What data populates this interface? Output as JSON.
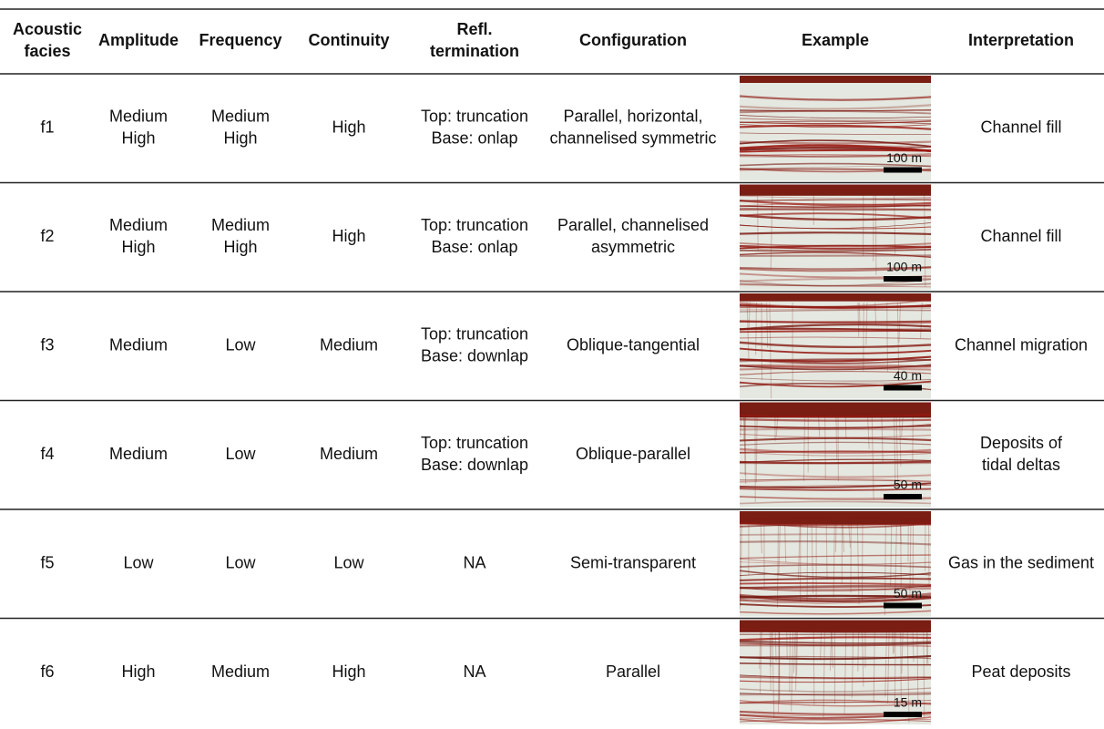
{
  "table": {
    "header": [
      [
        "Acoustic",
        "facies"
      ],
      [
        "Amplitude"
      ],
      [
        "Frequency"
      ],
      [
        "Continuity"
      ],
      [
        "Refl.",
        "termination"
      ],
      [
        "Configuration"
      ],
      [
        "Example"
      ],
      [
        "Interpretation"
      ]
    ],
    "rows": [
      {
        "cells": [
          [
            "f1"
          ],
          [
            "Medium",
            "High"
          ],
          [
            "Medium",
            "High"
          ],
          [
            "High"
          ],
          [
            "Top: truncation",
            "Base: onlap"
          ],
          [
            "Parallel, horizontal,",
            "channelised symmetric"
          ]
        ],
        "scale": "100 m",
        "interpretation": [
          "Channel fill"
        ]
      },
      {
        "cells": [
          [
            "f2"
          ],
          [
            "Medium",
            "High"
          ],
          [
            "Medium",
            "High"
          ],
          [
            "High"
          ],
          [
            "Top: truncation",
            "Base: onlap"
          ],
          [
            "Parallel, channelised",
            "asymmetric"
          ]
        ],
        "scale": "100 m",
        "interpretation": [
          "Channel fill"
        ]
      },
      {
        "cells": [
          [
            "f3"
          ],
          [
            "Medium"
          ],
          [
            "Low"
          ],
          [
            "Medium"
          ],
          [
            "Top: truncation",
            "Base: downlap"
          ],
          [
            "Oblique-tangential"
          ]
        ],
        "scale": "40 m",
        "interpretation": [
          "Channel migration"
        ]
      },
      {
        "cells": [
          [
            "f4"
          ],
          [
            "Medium"
          ],
          [
            "Low"
          ],
          [
            "Medium"
          ],
          [
            "Top: truncation",
            "Base: downlap"
          ],
          [
            "Oblique-parallel"
          ]
        ],
        "scale": "50 m",
        "interpretation": [
          "Deposits of",
          "tidal deltas"
        ]
      },
      {
        "cells": [
          [
            "f5"
          ],
          [
            "Low"
          ],
          [
            "Low"
          ],
          [
            "Low"
          ],
          [
            "NA"
          ],
          [
            "Semi-transparent"
          ]
        ],
        "scale": "50 m",
        "interpretation": [
          "Gas in the sediment"
        ]
      },
      {
        "cells": [
          [
            "f6"
          ],
          [
            "High"
          ],
          [
            "Medium"
          ],
          [
            "High"
          ],
          [
            "NA"
          ],
          [
            "Parallel"
          ]
        ],
        "scale": "15 m",
        "interpretation": [
          "Peat deposits"
        ]
      }
    ]
  }
}
